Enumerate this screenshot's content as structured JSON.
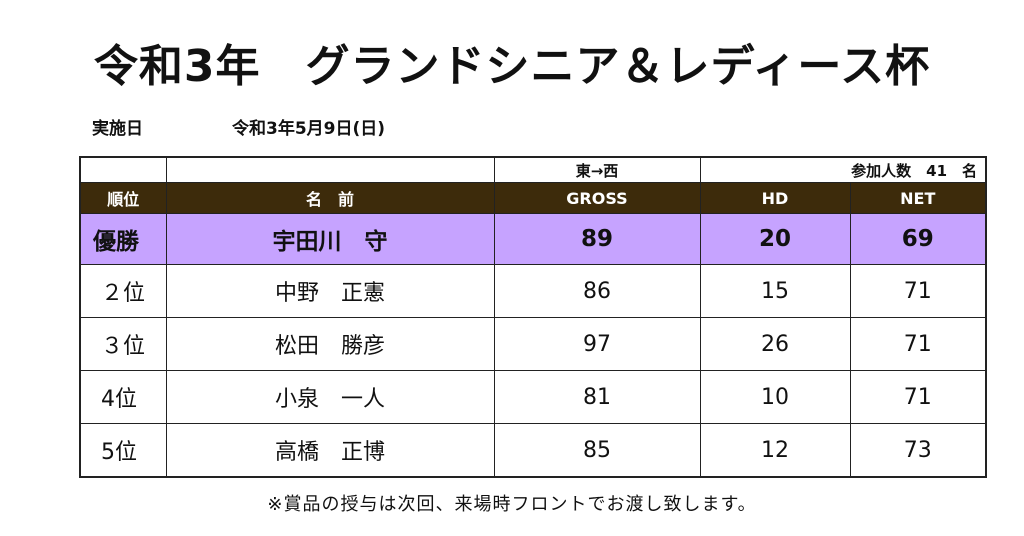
{
  "title": "令和3年　グランドシニア＆レディース杯",
  "date": {
    "label": "実施日",
    "value": "令和3年5月9日(日)"
  },
  "table": {
    "meta": {
      "direction": "東→西",
      "participants": "参加人数　41　名"
    },
    "headers": {
      "rank": "順位",
      "name": "名　前",
      "gross": "GROSS",
      "hd": "HD",
      "net": "NET"
    },
    "rows": [
      {
        "rank": "優勝",
        "name": "宇田川　守",
        "gross": "89",
        "hd": "20",
        "net": "69"
      },
      {
        "rank": "２位",
        "name": "中野　正憲",
        "gross": "86",
        "hd": "15",
        "net": "71"
      },
      {
        "rank": "３位",
        "name": "松田　勝彦",
        "gross": "97",
        "hd": "26",
        "net": "71"
      },
      {
        "rank": "4位",
        "name": "小泉　一人",
        "gross": "81",
        "hd": "10",
        "net": "71"
      },
      {
        "rank": "5位",
        "name": "高橋　正博",
        "gross": "85",
        "hd": "12",
        "net": "73"
      }
    ]
  },
  "note": "※賞品の授与は次回、来場時フロントでお渡し致します。",
  "colors": {
    "header_bg": "#3d2b0b",
    "winner_bg": "#c6a3ff"
  }
}
